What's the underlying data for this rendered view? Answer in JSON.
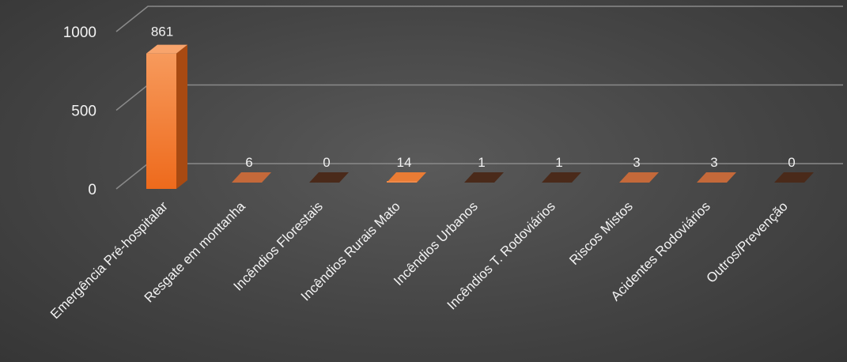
{
  "chart_data": {
    "type": "bar",
    "categories": [
      "Emergência Pré-hospitalar",
      "Resgate em montanha",
      "Incêndios Florestais",
      "Incêndios Rurais Mato",
      "Incêndios Urbanos",
      "Incêndios T. Rodoviários",
      "Riscos Mistos",
      "Acidentes Rodoviários",
      "Outros/Prevenção"
    ],
    "values": [
      861,
      6,
      0,
      14,
      1,
      1,
      3,
      3,
      0
    ],
    "ylim": [
      0,
      1000
    ],
    "yticks": [
      "0",
      "500",
      "1000"
    ],
    "grid": true,
    "legend": "none",
    "colors": {
      "bar_front_top": "#f79a5c",
      "bar_front_bottom": "#ee6a1c",
      "bar_side": "#a84a12",
      "bar_top": "#f8a46c",
      "floor_zero": "#4a2a1a",
      "gridline": "#8a8a8a",
      "text": "#f2f2f2"
    }
  }
}
